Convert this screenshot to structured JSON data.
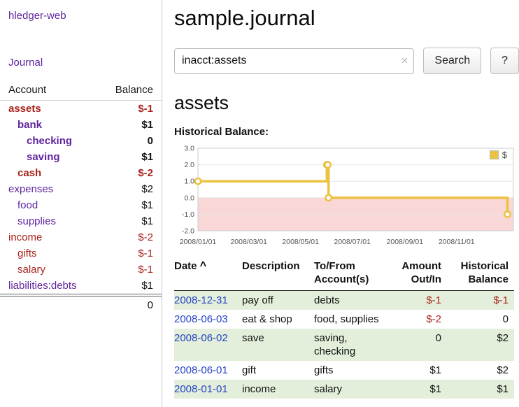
{
  "colors": {
    "purple": "#60269e",
    "link_blue": "#2543c6",
    "negative_red": "#a9231b",
    "row_green": "#e3efda",
    "chart_line": "#edc240",
    "chart_negative_fill": "#f9d7d7",
    "chart_grid": "#e7e7e7",
    "chart_border": "#cccccc"
  },
  "sidebar": {
    "brand": "hledger-web",
    "nav": "Journal",
    "columns": {
      "account": "Account",
      "balance": "Balance"
    },
    "accounts": [
      {
        "name": "assets",
        "balance": "$-1",
        "indent": 0,
        "in_query": true,
        "negative": true
      },
      {
        "name": "bank",
        "balance": "$1",
        "indent": 1,
        "in_query": true,
        "negative": false
      },
      {
        "name": "checking",
        "balance": "0",
        "indent": 2,
        "in_query": true,
        "negative": false
      },
      {
        "name": "saving",
        "balance": "$1",
        "indent": 2,
        "in_query": true,
        "negative": false
      },
      {
        "name": "cash",
        "balance": "$-2",
        "indent": 1,
        "in_query": true,
        "negative": true
      },
      {
        "name": "expenses",
        "balance": "$2",
        "indent": 0,
        "in_query": false,
        "negative": false
      },
      {
        "name": "food",
        "balance": "$1",
        "indent": 1,
        "in_query": false,
        "negative": false
      },
      {
        "name": "supplies",
        "balance": "$1",
        "indent": 1,
        "in_query": false,
        "negative": false
      },
      {
        "name": "income",
        "balance": "$-2",
        "indent": 0,
        "in_query": false,
        "negative": true
      },
      {
        "name": "gifts",
        "balance": "$-1",
        "indent": 1,
        "in_query": false,
        "negative": true
      },
      {
        "name": "salary",
        "balance": "$-1",
        "indent": 1,
        "in_query": false,
        "negative": true
      },
      {
        "name": "liabilities:debts",
        "balance": "$1",
        "indent": 0,
        "in_query": false,
        "negative": false
      }
    ],
    "total": "0"
  },
  "header": {
    "title": "sample.journal"
  },
  "search": {
    "value": "inacct:assets",
    "clear_icon": "×",
    "search_button": "Search",
    "help_button": "?"
  },
  "account_page": {
    "heading": "assets",
    "chart_heading": "Historical Balance:"
  },
  "chart_data": {
    "type": "line",
    "step": true,
    "title": "Historical Balance",
    "legend": {
      "label": "$",
      "position": "top-right"
    },
    "xlim": [
      0,
      372
    ],
    "ylim": [
      -2,
      3
    ],
    "yticks": [
      {
        "v": 3,
        "label": "3.0"
      },
      {
        "v": 2,
        "label": "2.0"
      },
      {
        "v": 1,
        "label": "1.0"
      },
      {
        "v": 0,
        "label": "0.0"
      },
      {
        "v": -1,
        "label": "-1.0"
      },
      {
        "v": -2,
        "label": "-2.0"
      }
    ],
    "xticks": [
      {
        "v": 0,
        "label": "2008/01/01"
      },
      {
        "v": 60,
        "label": "2008/03/01"
      },
      {
        "v": 121,
        "label": "2008/05/01"
      },
      {
        "v": 182,
        "label": "2008/07/01"
      },
      {
        "v": 244,
        "label": "2008/09/01"
      },
      {
        "v": 305,
        "label": "2008/11/01"
      }
    ],
    "series": [
      {
        "name": "$",
        "points": [
          {
            "date": "2008-01-01",
            "x": 0,
            "y": 1
          },
          {
            "date": "2008-06-01",
            "x": 152,
            "y": 2
          },
          {
            "date": "2008-06-02",
            "x": 153,
            "y": 2
          },
          {
            "date": "2008-06-03",
            "x": 154,
            "y": 0
          },
          {
            "date": "2008-12-31",
            "x": 365,
            "y": -1
          }
        ]
      }
    ],
    "negative_region": {
      "from": 0,
      "to": -2
    }
  },
  "register": {
    "headers": {
      "date": "Date",
      "sort_indicator": "^",
      "description": "Description",
      "accounts": "To/From Account(s)",
      "amount": "Amount Out/In",
      "balance": "Historical Balance"
    },
    "rows": [
      {
        "date": "2008-12-31",
        "description": "pay off",
        "accounts": "debts",
        "amount": "$-1",
        "balance": "$-1"
      },
      {
        "date": "2008-06-03",
        "description": "eat & shop",
        "accounts": "food, supplies",
        "amount": "$-2",
        "balance": "0"
      },
      {
        "date": "2008-06-02",
        "description": "save",
        "accounts": "saving, checking",
        "amount": "0",
        "balance": "$2"
      },
      {
        "date": "2008-06-01",
        "description": "gift",
        "accounts": "gifts",
        "amount": "$1",
        "balance": "$2"
      },
      {
        "date": "2008-01-01",
        "description": "income",
        "accounts": "salary",
        "amount": "$1",
        "balance": "$1"
      }
    ]
  }
}
